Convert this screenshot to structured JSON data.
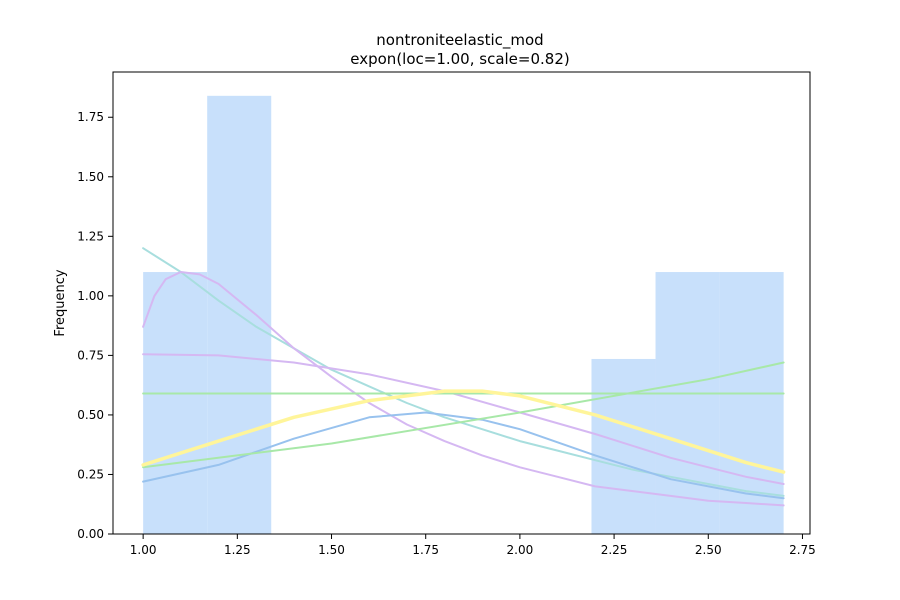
{
  "chart_data": {
    "type": "bar",
    "title": "nontroniteelastic_mod",
    "subtitle": "expon(loc=1.00, scale=0.82)",
    "xlabel": "",
    "ylabel": "Frequency",
    "xlim": [
      0.92,
      2.77
    ],
    "ylim": [
      0,
      1.94
    ],
    "xticks": [
      "1.00",
      "1.25",
      "1.50",
      "1.75",
      "2.00",
      "2.25",
      "2.50",
      "2.75"
    ],
    "yticks": [
      "0.00",
      "0.25",
      "0.50",
      "0.75",
      "1.00",
      "1.25",
      "1.50",
      "1.75"
    ],
    "grid": false,
    "histogram": {
      "color": "#c8e0fb",
      "bins": [
        {
          "x0": 1.0,
          "x1": 1.17,
          "value": 1.1
        },
        {
          "x0": 1.17,
          "x1": 1.34,
          "value": 1.84
        },
        {
          "x0": 1.34,
          "x1": 1.51,
          "value": 0
        },
        {
          "x0": 1.51,
          "x1": 1.68,
          "value": 0
        },
        {
          "x0": 1.68,
          "x1": 1.85,
          "value": 0
        },
        {
          "x0": 1.85,
          "x1": 2.02,
          "value": 0
        },
        {
          "x0": 2.02,
          "x1": 2.19,
          "value": 0
        },
        {
          "x0": 2.19,
          "x1": 2.36,
          "value": 0.735
        },
        {
          "x0": 2.36,
          "x1": 2.53,
          "value": 1.1
        },
        {
          "x0": 2.53,
          "x1": 2.7,
          "value": 1.1
        }
      ]
    },
    "series": [
      {
        "color": "#a8dede",
        "width": 2,
        "x": [
          1.0,
          1.1,
          1.2,
          1.3,
          1.4,
          1.5,
          1.6,
          1.7,
          1.8,
          1.9,
          2.0,
          2.1,
          2.2,
          2.3,
          2.4,
          2.5,
          2.6,
          2.7
        ],
        "y": [
          1.2,
          1.1,
          0.98,
          0.87,
          0.78,
          0.69,
          0.62,
          0.55,
          0.49,
          0.44,
          0.39,
          0.35,
          0.31,
          0.27,
          0.24,
          0.21,
          0.18,
          0.16
        ]
      },
      {
        "color": "#d5b8f2",
        "width": 2,
        "x": [
          1.0,
          1.03,
          1.06,
          1.1,
          1.15,
          1.2,
          1.3,
          1.4,
          1.5,
          1.6,
          1.7,
          1.8,
          1.9,
          2.0,
          2.1,
          2.2,
          2.3,
          2.4,
          2.5,
          2.6,
          2.7
        ],
        "y": [
          0.87,
          1.0,
          1.07,
          1.1,
          1.09,
          1.05,
          0.92,
          0.78,
          0.66,
          0.55,
          0.46,
          0.39,
          0.33,
          0.28,
          0.24,
          0.2,
          0.18,
          0.16,
          0.14,
          0.13,
          0.12
        ]
      },
      {
        "color": "#d5b8f2",
        "width": 2,
        "x": [
          1.0,
          1.2,
          1.4,
          1.6,
          1.8,
          2.0,
          2.2,
          2.4,
          2.6,
          2.7
        ],
        "y": [
          0.755,
          0.75,
          0.72,
          0.67,
          0.6,
          0.51,
          0.42,
          0.32,
          0.24,
          0.21
        ]
      },
      {
        "color": "#98c2ee",
        "width": 2,
        "x": [
          1.0,
          1.2,
          1.4,
          1.6,
          1.75,
          1.9,
          2.0,
          2.2,
          2.4,
          2.6,
          2.7
        ],
        "y": [
          0.22,
          0.29,
          0.4,
          0.49,
          0.51,
          0.48,
          0.44,
          0.33,
          0.23,
          0.17,
          0.15
        ]
      },
      {
        "color": "#a8e8a8",
        "width": 2,
        "x": [
          1.0,
          2.7
        ],
        "y": [
          0.59,
          0.59
        ]
      },
      {
        "color": "#a8e8a8",
        "width": 2,
        "x": [
          1.0,
          1.5,
          2.0,
          2.5,
          2.7
        ],
        "y": [
          0.28,
          0.38,
          0.51,
          0.65,
          0.72
        ]
      },
      {
        "color": "#fff59a",
        "width": 3.5,
        "x": [
          1.0,
          1.2,
          1.4,
          1.6,
          1.8,
          1.9,
          2.0,
          2.2,
          2.4,
          2.6,
          2.7
        ],
        "y": [
          0.29,
          0.39,
          0.49,
          0.56,
          0.6,
          0.6,
          0.58,
          0.5,
          0.4,
          0.3,
          0.26
        ]
      }
    ]
  }
}
